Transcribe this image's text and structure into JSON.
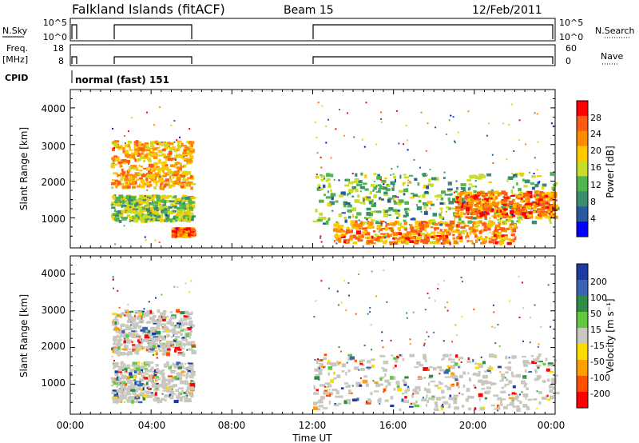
{
  "header": {
    "station": "Falkland Islands (fitACF)",
    "beam": "Beam 15",
    "date": "12/Feb/2011"
  },
  "strips": {
    "nsky_label": "N.Sky",
    "nsky_ticks": [
      "10^5",
      "10^0"
    ],
    "nsearch_label": "N.Search",
    "nsearch_ticks": [
      "10^5",
      "10^0"
    ],
    "freq_label_line1": "Freq.",
    "freq_label_line2": "[MHz]",
    "freq_ticks": [
      "18",
      "8"
    ],
    "nave_label": "Nave",
    "nave_ticks": [
      "60",
      "0"
    ],
    "cpid_label": "CPID",
    "cpid_text": "normal (fast) 151"
  },
  "axes": {
    "x_ticks": [
      "00:00",
      "04:00",
      "08:00",
      "12:00",
      "16:00",
      "20:00",
      "00:00"
    ],
    "xlabel": "Time UT",
    "ylabel": "Slant Range [km]",
    "y_ticks": [
      "1000",
      "2000",
      "3000",
      "4000"
    ]
  },
  "power_scale": {
    "label": "Power [dB]",
    "ticks": [
      "28",
      "24",
      "20",
      "16",
      "12",
      "8",
      "4"
    ],
    "colors": [
      "#ff0000",
      "#ff5a14",
      "#ff8c00",
      "#ffc800",
      "#c8dc28",
      "#50b450",
      "#3c8c6e",
      "#285aa0",
      "#0000ff"
    ]
  },
  "velocity_scale": {
    "label": "Velocity [m s⁻¹]",
    "ticks": [
      "200",
      "100",
      "50",
      "15",
      "-15",
      "-50",
      "-100",
      "-200"
    ],
    "colors": [
      "#1e3ca0",
      "#3c64b4",
      "#2d8c46",
      "#64c83c",
      "#c8c8be",
      "#ffdc00",
      "#ffa000",
      "#ff5000",
      "#ff0000"
    ]
  },
  "chart_data": [
    {
      "type": "heatmap",
      "title": "Power",
      "xlabel": "Time UT",
      "ylabel": "Slant Range [km]",
      "xlim": [
        0,
        24
      ],
      "ylim": [
        180,
        4500
      ],
      "colorbar": "Power [dB]",
      "data_gaps_hours": [
        [
          0.3,
          2.0
        ],
        [
          6.0,
          12.0
        ]
      ],
      "echo_regions": [
        {
          "t_start": 2.0,
          "t_end": 6.0,
          "range_km": [
            1800,
            3100
          ],
          "power_db": 22
        },
        {
          "t_start": 2.0,
          "t_end": 6.0,
          "range_km": [
            900,
            1600
          ],
          "power_db": 14
        },
        {
          "t_start": 5.0,
          "t_end": 6.0,
          "range_km": [
            500,
            700
          ],
          "power_db": 26
        },
        {
          "t_start": 12.0,
          "t_end": 24.0,
          "range_km": [
            800,
            2200
          ],
          "power_db": 12
        },
        {
          "t_start": 13.0,
          "t_end": 22.0,
          "range_km": [
            300,
            900
          ],
          "power_db": 24
        },
        {
          "t_start": 19.0,
          "t_end": 24.0,
          "range_km": [
            1000,
            1700
          ],
          "power_db": 26
        }
      ]
    },
    {
      "type": "heatmap",
      "title": "Velocity",
      "xlabel": "Time UT",
      "ylabel": "Slant Range [km]",
      "xlim": [
        0,
        24
      ],
      "ylim": [
        180,
        4500
      ],
      "colorbar": "Velocity [m s⁻¹]",
      "data_gaps_hours": [
        [
          0.3,
          2.0
        ],
        [
          6.0,
          12.0
        ]
      ],
      "echo_regions": [
        {
          "t_start": 2.0,
          "t_end": 6.0,
          "range_km": [
            1800,
            3000
          ],
          "velocity_ms": 0
        },
        {
          "t_start": 2.0,
          "t_end": 6.0,
          "range_km": [
            500,
            1600
          ],
          "velocity_ms": 0
        },
        {
          "t_start": 12.0,
          "t_end": 24.0,
          "range_km": [
            300,
            1800
          ],
          "velocity_ms": 0
        }
      ]
    }
  ]
}
